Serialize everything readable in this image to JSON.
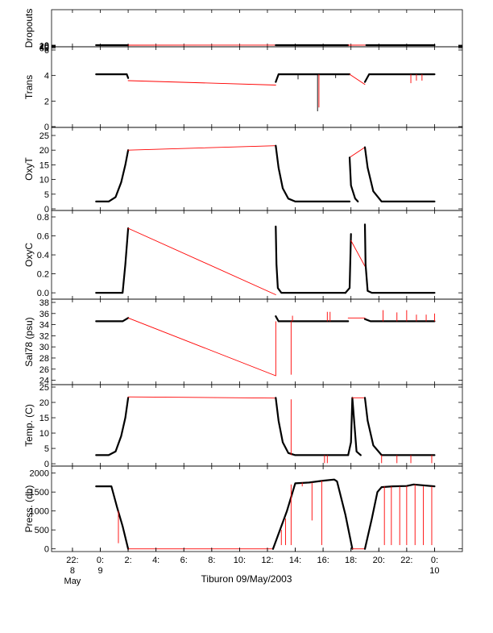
{
  "colors": {
    "axis": "#000000",
    "data": "#000000",
    "interp": "#ff0000"
  },
  "caption": "Tiburon 09/May/2003",
  "x_ticks": [
    {
      "t": -2,
      "l1": "22:",
      "l2": "8",
      "l3": "May"
    },
    {
      "t": 0,
      "l1": "0:",
      "l2": "9",
      "l3": ""
    },
    {
      "t": 2,
      "l1": "2:",
      "l2": "",
      "l3": ""
    },
    {
      "t": 4,
      "l1": "4:",
      "l2": "",
      "l3": ""
    },
    {
      "t": 6,
      "l1": "6:",
      "l2": "",
      "l3": ""
    },
    {
      "t": 8,
      "l1": "8:",
      "l2": "",
      "l3": ""
    },
    {
      "t": 10,
      "l1": "10:",
      "l2": "",
      "l3": ""
    },
    {
      "t": 12,
      "l1": "12:",
      "l2": "",
      "l3": ""
    },
    {
      "t": 14,
      "l1": "14:",
      "l2": "",
      "l3": ""
    },
    {
      "t": 16,
      "l1": "16:",
      "l2": "",
      "l3": ""
    },
    {
      "t": 18,
      "l1": "18:",
      "l2": "",
      "l3": ""
    },
    {
      "t": 20,
      "l1": "20:",
      "l2": "",
      "l3": ""
    },
    {
      "t": 22,
      "l1": "22:",
      "l2": "",
      "l3": ""
    },
    {
      "t": 24,
      "l1": "0:",
      "l2": "10",
      "l3": ""
    }
  ],
  "chart_data": [
    {
      "type": "line",
      "ylabel": "Dropouts",
      "xlim": [
        -3.5,
        26
      ],
      "ylim": [
        0,
        65
      ],
      "yticks": [
        [
          "0",
          "0"
        ],
        [
          "10",
          "10"
        ],
        [
          "20",
          "20"
        ],
        [
          "40",
          "40"
        ],
        [
          "60",
          "60"
        ]
      ],
      "series": [
        {
          "color": "#000000",
          "x": [
            -0.3,
            2.0
          ],
          "y": [
            0,
            0
          ]
        },
        {
          "color": "#ff0000",
          "x": [
            2.0,
            12.6
          ],
          "y": [
            0,
            -1
          ]
        },
        {
          "color": "#000000",
          "x": [
            12.6,
            17.8
          ],
          "y": [
            0,
            0
          ]
        },
        {
          "color": "#ff0000",
          "x": [
            17.8,
            19.1
          ],
          "y": [
            0,
            -1
          ]
        },
        {
          "color": "#000000",
          "x": [
            19.1,
            24.0
          ],
          "y": [
            0,
            0
          ]
        }
      ],
      "spikes": []
    },
    {
      "type": "line",
      "ylabel": "Trans",
      "xlim": [
        -3.5,
        26
      ],
      "ylim": [
        0,
        6
      ],
      "yticks": [
        [
          "0",
          "0"
        ],
        [
          "2",
          "2"
        ],
        [
          "4",
          "4"
        ],
        [
          "6",
          "6"
        ]
      ],
      "series": [
        {
          "color": "#000000",
          "x": [
            -0.3,
            1.9,
            2.0
          ],
          "y": [
            4.1,
            4.1,
            3.8
          ]
        },
        {
          "color": "#ff0000",
          "x": [
            2.0,
            12.6
          ],
          "y": [
            3.6,
            3.25
          ]
        },
        {
          "color": "#000000",
          "x": [
            12.6,
            12.8,
            17.9
          ],
          "y": [
            3.5,
            4.1,
            4.1
          ]
        },
        {
          "color": "#ff0000",
          "x": [
            17.9,
            19.0
          ],
          "y": [
            4.1,
            3.3
          ]
        },
        {
          "color": "#000000",
          "x": [
            19.0,
            19.3,
            24.0
          ],
          "y": [
            3.5,
            4.1,
            4.1
          ]
        }
      ],
      "spikes": [
        {
          "color": "#000000",
          "x": 15.6,
          "y0": 4.1,
          "y1": 1.2
        },
        {
          "color": "#ff0000",
          "x": 15.7,
          "y0": 4.1,
          "y1": 1.5
        },
        {
          "color": "#000000",
          "x": 14.2,
          "y0": 4.1,
          "y1": 3.7
        },
        {
          "color": "#000000",
          "x": 16.9,
          "y0": 4.1,
          "y1": 3.8
        },
        {
          "color": "#ff0000",
          "x": 22.3,
          "y0": 4.1,
          "y1": 3.4
        },
        {
          "color": "#ff0000",
          "x": 22.7,
          "y0": 4.1,
          "y1": 3.6
        },
        {
          "color": "#ff0000",
          "x": 23.1,
          "y0": 4.1,
          "y1": 3.6
        }
      ]
    },
    {
      "type": "line",
      "ylabel": "OxyT",
      "xlim": [
        -3.5,
        26
      ],
      "ylim": [
        0,
        25
      ],
      "yticks": [
        [
          "0",
          "0"
        ],
        [
          "5",
          "5"
        ],
        [
          "10",
          "10"
        ],
        [
          "15",
          "15"
        ],
        [
          "20",
          "20"
        ],
        [
          "25",
          "25"
        ]
      ],
      "series": [
        {
          "color": "#000000",
          "x": [
            -0.3,
            0.6,
            1.1,
            1.5,
            1.8,
            2.0
          ],
          "y": [
            2.5,
            2.5,
            4.0,
            9.0,
            15.0,
            20.0
          ]
        },
        {
          "color": "#ff0000",
          "x": [
            2.0,
            12.6
          ],
          "y": [
            20.0,
            21.5
          ]
        },
        {
          "color": "#000000",
          "x": [
            12.6,
            12.8,
            13.1,
            13.5,
            14.0,
            17.9
          ],
          "y": [
            21.5,
            14.0,
            7.0,
            3.5,
            2.5,
            2.5
          ]
        },
        {
          "color": "#ff0000",
          "x": [
            17.9,
            19.0
          ],
          "y": [
            17.5,
            21.0
          ]
        },
        {
          "color": "#000000",
          "x": [
            17.9,
            18.0,
            18.3,
            18.5
          ],
          "y": [
            17.5,
            8.0,
            3.5,
            2.5
          ]
        },
        {
          "color": "#000000",
          "x": [
            19.0,
            19.2,
            19.6,
            20.2,
            24.0
          ],
          "y": [
            21.0,
            14.0,
            6.0,
            2.5,
            2.5
          ]
        }
      ],
      "spikes": []
    },
    {
      "type": "line",
      "ylabel": "OxyC",
      "xlim": [
        -3.5,
        26
      ],
      "ylim": [
        -0.05,
        0.8
      ],
      "yticks": [
        [
          "0.0",
          "0.0"
        ],
        [
          "0.2",
          "0.2"
        ],
        [
          "0.4",
          "0.4"
        ],
        [
          "0.6",
          "0.6"
        ],
        [
          "0.8",
          "0.8"
        ]
      ],
      "series": [
        {
          "color": "#000000",
          "x": [
            -0.3,
            1.6,
            1.8,
            2.0
          ],
          "y": [
            0.0,
            0.0,
            0.3,
            0.68
          ]
        },
        {
          "color": "#ff0000",
          "x": [
            2.0,
            12.6
          ],
          "y": [
            0.68,
            -0.02
          ]
        },
        {
          "color": "#000000",
          "x": [
            12.6,
            12.65,
            12.75,
            13.0,
            17.6
          ],
          "y": [
            0.7,
            0.3,
            0.05,
            0.0,
            0.0
          ]
        },
        {
          "color": "#000000",
          "x": [
            17.6,
            17.9,
            18.0
          ],
          "y": [
            0.0,
            0.05,
            0.62
          ]
        },
        {
          "color": "#ff0000",
          "x": [
            18.0,
            19.0
          ],
          "y": [
            0.55,
            0.28
          ]
        },
        {
          "color": "#000000",
          "x": [
            19.0,
            19.05,
            19.2,
            19.5,
            24.0
          ],
          "y": [
            0.72,
            0.3,
            0.02,
            0.0,
            0.0
          ]
        }
      ],
      "spikes": []
    },
    {
      "type": "line",
      "ylabel": "Sal78 (psu)",
      "xlim": [
        -3.5,
        26
      ],
      "ylim": [
        23.5,
        38
      ],
      "yticks": [
        [
          "24",
          "24"
        ],
        [
          "26",
          "26"
        ],
        [
          "28",
          "28"
        ],
        [
          "30",
          "30"
        ],
        [
          "32",
          "32"
        ],
        [
          "34",
          "34"
        ],
        [
          "36",
          "36"
        ],
        [
          "38",
          "38"
        ]
      ],
      "series": [
        {
          "color": "#000000",
          "x": [
            -0.3,
            1.6,
            2.0
          ],
          "y": [
            34.6,
            34.6,
            35.2
          ]
        },
        {
          "color": "#ff0000",
          "x": [
            2.0,
            12.6
          ],
          "y": [
            35.2,
            24.8
          ]
        },
        {
          "color": "#000000",
          "x": [
            12.6,
            12.8,
            13.2,
            17.8
          ],
          "y": [
            35.5,
            34.6,
            34.6,
            34.6
          ]
        },
        {
          "color": "#ff0000",
          "x": [
            17.8,
            19.0
          ],
          "y": [
            35.2,
            35.2
          ]
        },
        {
          "color": "#000000",
          "x": [
            19.0,
            19.4,
            24.0
          ],
          "y": [
            35.0,
            34.6,
            34.6
          ]
        }
      ],
      "spikes": [
        {
          "color": "#ff0000",
          "x": 12.6,
          "y0": 34.6,
          "y1": 24.8
        },
        {
          "color": "#ff0000",
          "x": 13.7,
          "y0": 34.6,
          "y1": 25.0
        },
        {
          "color": "#ff0000",
          "x": 13.8,
          "y0": 34.6,
          "y1": 35.6
        },
        {
          "color": "#ff0000",
          "x": 16.3,
          "y0": 34.6,
          "y1": 36.3
        },
        {
          "color": "#ff0000",
          "x": 16.5,
          "y0": 34.6,
          "y1": 36.3
        },
        {
          "color": "#ff0000",
          "x": 20.3,
          "y0": 34.6,
          "y1": 36.6
        },
        {
          "color": "#ff0000",
          "x": 21.3,
          "y0": 34.6,
          "y1": 36.2
        },
        {
          "color": "#ff0000",
          "x": 22.0,
          "y0": 34.6,
          "y1": 36.6
        },
        {
          "color": "#ff0000",
          "x": 22.7,
          "y0": 34.6,
          "y1": 35.8
        },
        {
          "color": "#ff0000",
          "x": 23.4,
          "y0": 34.6,
          "y1": 35.8
        },
        {
          "color": "#ff0000",
          "x": 24.0,
          "y0": 34.6,
          "y1": 36.0
        }
      ]
    },
    {
      "type": "line",
      "ylabel": "Temp. (C)",
      "xlim": [
        -3.5,
        26
      ],
      "ylim": [
        -0.5,
        25
      ],
      "yticks": [
        [
          "0",
          "0"
        ],
        [
          "5",
          "5"
        ],
        [
          "10",
          "10"
        ],
        [
          "15",
          "15"
        ],
        [
          "20",
          "20"
        ],
        [
          "25",
          "25"
        ]
      ],
      "series": [
        {
          "color": "#000000",
          "x": [
            -0.3,
            0.6,
            1.1,
            1.5,
            1.8,
            2.0
          ],
          "y": [
            2.8,
            2.8,
            4.0,
            9.0,
            15.0,
            21.5
          ]
        },
        {
          "color": "#ff0000",
          "x": [
            2.0,
            12.6
          ],
          "y": [
            21.8,
            21.4
          ]
        },
        {
          "color": "#000000",
          "x": [
            12.6,
            12.8,
            13.1,
            13.5,
            14.0,
            17.8
          ],
          "y": [
            21.5,
            14.0,
            7.0,
            3.5,
            2.8,
            2.8
          ]
        },
        {
          "color": "#000000",
          "x": [
            17.8,
            18.0,
            18.1,
            18.4,
            18.7
          ],
          "y": [
            2.8,
            7.0,
            21.5,
            4.0,
            2.8
          ]
        },
        {
          "color": "#ff0000",
          "x": [
            18.1,
            19.0
          ],
          "y": [
            21.5,
            21.5
          ]
        },
        {
          "color": "#000000",
          "x": [
            19.0,
            19.2,
            19.6,
            20.2,
            24.0
          ],
          "y": [
            21.5,
            14.0,
            6.0,
            2.8,
            2.8
          ]
        }
      ],
      "spikes": [
        {
          "color": "#ff0000",
          "x": 13.7,
          "y0": 2.8,
          "y1": 21.0
        },
        {
          "color": "#ff0000",
          "x": 16.1,
          "y0": 2.8,
          "y1": 0.2
        },
        {
          "color": "#ff0000",
          "x": 16.3,
          "y0": 2.8,
          "y1": 0.2
        },
        {
          "color": "#ff0000",
          "x": 20.2,
          "y0": 2.8,
          "y1": 0.2
        },
        {
          "color": "#ff0000",
          "x": 21.3,
          "y0": 2.8,
          "y1": 0.2
        },
        {
          "color": "#ff0000",
          "x": 22.3,
          "y0": 2.8,
          "y1": 0.2
        },
        {
          "color": "#ff0000",
          "x": 23.8,
          "y0": 2.8,
          "y1": 0.2
        }
      ]
    },
    {
      "type": "line",
      "ylabel": "Press. (db)",
      "xlim": [
        -3.5,
        26
      ],
      "ylim": [
        -50,
        2100
      ],
      "yticks": [
        [
          "0",
          "0"
        ],
        [
          "500",
          "500"
        ],
        [
          "1000",
          "1000"
        ],
        [
          "1500",
          "1500"
        ],
        [
          "2000",
          "2000"
        ]
      ],
      "series": [
        {
          "color": "#000000",
          "x": [
            -0.3,
            0.8,
            1.2,
            1.6,
            2.0
          ],
          "y": [
            1650,
            1650,
            1100,
            600,
            0
          ]
        },
        {
          "color": "#ff0000",
          "x": [
            2.0,
            12.4
          ],
          "y": [
            0,
            0
          ]
        },
        {
          "color": "#000000",
          "x": [
            12.4,
            13.4,
            14.0,
            15.0,
            16.0,
            16.8,
            17.0,
            17.6,
            18.1
          ],
          "y": [
            0,
            1000,
            1730,
            1750,
            1800,
            1830,
            1780,
            900,
            0
          ]
        },
        {
          "color": "#ff0000",
          "x": [
            18.1,
            19.0
          ],
          "y": [
            0,
            0
          ]
        },
        {
          "color": "#000000",
          "x": [
            19.0,
            19.5,
            19.9,
            20.2,
            21.0,
            22.0,
            22.5,
            24.0
          ],
          "y": [
            0,
            800,
            1500,
            1630,
            1650,
            1660,
            1700,
            1650
          ]
        }
      ],
      "spikes": [
        {
          "color": "#ff0000",
          "x": 1.3,
          "y0": 1000,
          "y1": 150
        },
        {
          "color": "#ff0000",
          "x": 13.0,
          "y0": 500,
          "y1": 100
        },
        {
          "color": "#ff0000",
          "x": 13.3,
          "y0": 800,
          "y1": 100
        },
        {
          "color": "#ff0000",
          "x": 13.7,
          "y0": 1700,
          "y1": 100
        },
        {
          "color": "#ff0000",
          "x": 14.5,
          "y0": 1750,
          "y1": 1650
        },
        {
          "color": "#ff0000",
          "x": 15.2,
          "y0": 1750,
          "y1": 750
        },
        {
          "color": "#ff0000",
          "x": 15.9,
          "y0": 1800,
          "y1": 100
        },
        {
          "color": "#ff0000",
          "x": 20.4,
          "y0": 1650,
          "y1": 100
        },
        {
          "color": "#ff0000",
          "x": 20.9,
          "y0": 1650,
          "y1": 100
        },
        {
          "color": "#ff0000",
          "x": 21.5,
          "y0": 1650,
          "y1": 100
        },
        {
          "color": "#ff0000",
          "x": 22.0,
          "y0": 1660,
          "y1": 100
        },
        {
          "color": "#ff0000",
          "x": 22.6,
          "y0": 1700,
          "y1": 100
        },
        {
          "color": "#ff0000",
          "x": 23.2,
          "y0": 1650,
          "y1": 100
        },
        {
          "color": "#ff0000",
          "x": 23.8,
          "y0": 1650,
          "y1": 100
        }
      ]
    }
  ]
}
